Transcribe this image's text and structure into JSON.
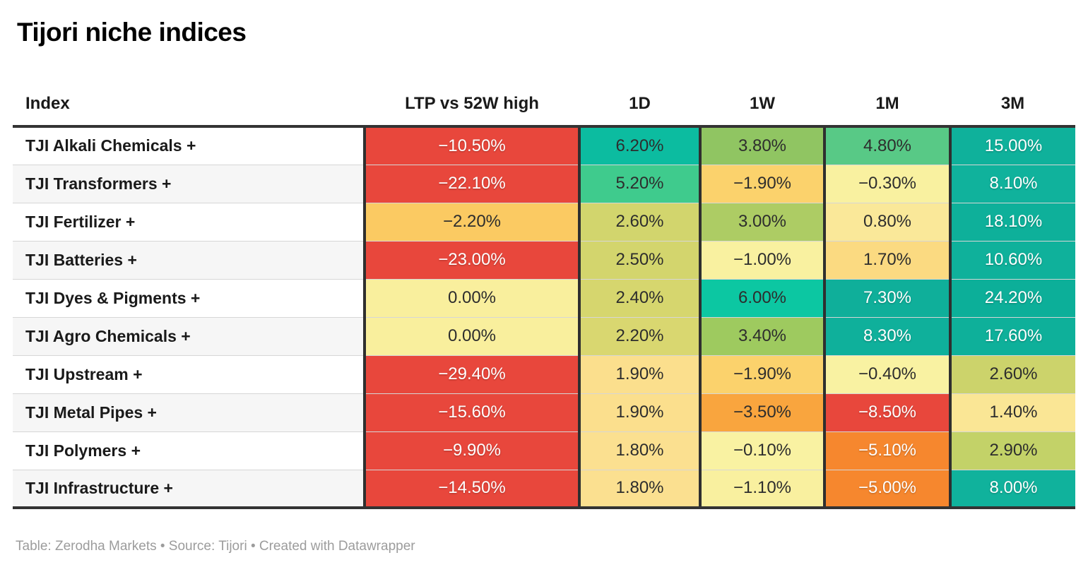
{
  "title": "Tijori niche indices",
  "footer": "Table: Zerodha Markets • Source: Tijori • Created with Datawrapper",
  "colors": {
    "negative_strong": "#e8473c",
    "negative_orange": "#f6872e",
    "neutral_yellow": "#f9ef9d",
    "positive_teal": "#0fb19b",
    "border_dark": "#333333",
    "row_stripe": "#f6f6f6",
    "footer_text": "#9c9c9c"
  },
  "table": {
    "columns": [
      "Index",
      "LTP vs 52W high",
      "1D",
      "1W",
      "1M",
      "3M"
    ],
    "rows": [
      {
        "index": "TJI Alkali Chemicals +",
        "cells": [
          {
            "text": "−10.50%",
            "bg": "#e8473c",
            "fg": "#ffffff"
          },
          {
            "text": "6.20%",
            "bg": "#0cbca0",
            "fg": "#2d2d2d"
          },
          {
            "text": "3.80%",
            "bg": "#90c562",
            "fg": "#2d2d2d"
          },
          {
            "text": "4.80%",
            "bg": "#58c986",
            "fg": "#2d2d2d"
          },
          {
            "text": "15.00%",
            "bg": "#0fb19b",
            "fg": "#ffffff"
          }
        ]
      },
      {
        "index": "TJI Transformers +",
        "cells": [
          {
            "text": "−22.10%",
            "bg": "#e8473c",
            "fg": "#ffffff"
          },
          {
            "text": "5.20%",
            "bg": "#3fcb8d",
            "fg": "#2d2d2d"
          },
          {
            "text": "−1.90%",
            "bg": "#fbd26c",
            "fg": "#2d2d2d"
          },
          {
            "text": "−0.30%",
            "bg": "#f9f1a0",
            "fg": "#2d2d2d"
          },
          {
            "text": "8.10%",
            "bg": "#10b29c",
            "fg": "#ffffff"
          }
        ]
      },
      {
        "index": "TJI Fertilizer +",
        "cells": [
          {
            "text": "−2.20%",
            "bg": "#fbca62",
            "fg": "#2d2d2d"
          },
          {
            "text": "2.60%",
            "bg": "#d2d56d",
            "fg": "#2d2d2d"
          },
          {
            "text": "3.00%",
            "bg": "#adcc64",
            "fg": "#2d2d2d"
          },
          {
            "text": "0.80%",
            "bg": "#fae899",
            "fg": "#2d2d2d"
          },
          {
            "text": "18.10%",
            "bg": "#0eb09a",
            "fg": "#ffffff"
          }
        ]
      },
      {
        "index": "TJI Batteries +",
        "cells": [
          {
            "text": "−23.00%",
            "bg": "#e8473c",
            "fg": "#ffffff"
          },
          {
            "text": "2.50%",
            "bg": "#d3d56d",
            "fg": "#2d2d2d"
          },
          {
            "text": "−1.00%",
            "bg": "#f9f1a0",
            "fg": "#2d2d2d"
          },
          {
            "text": "1.70%",
            "bg": "#fbda81",
            "fg": "#2d2d2d"
          },
          {
            "text": "10.60%",
            "bg": "#0fb19b",
            "fg": "#ffffff"
          }
        ]
      },
      {
        "index": "TJI Dyes & Pigments +",
        "cells": [
          {
            "text": "0.00%",
            "bg": "#f9ef9d",
            "fg": "#2d2d2d"
          },
          {
            "text": "2.40%",
            "bg": "#d6d66e",
            "fg": "#2d2d2d"
          },
          {
            "text": "6.00%",
            "bg": "#0cc7a2",
            "fg": "#2d2d2d"
          },
          {
            "text": "7.30%",
            "bg": "#0faf9a",
            "fg": "#ffffff"
          },
          {
            "text": "24.20%",
            "bg": "#0caf99",
            "fg": "#ffffff"
          }
        ]
      },
      {
        "index": "TJI Agro Chemicals +",
        "cells": [
          {
            "text": "0.00%",
            "bg": "#f9ef9d",
            "fg": "#2d2d2d"
          },
          {
            "text": "2.20%",
            "bg": "#d9d770",
            "fg": "#2d2d2d"
          },
          {
            "text": "3.40%",
            "bg": "#9eca5f",
            "fg": "#2d2d2d"
          },
          {
            "text": "8.30%",
            "bg": "#0fb09b",
            "fg": "#ffffff"
          },
          {
            "text": "17.60%",
            "bg": "#0eb09a",
            "fg": "#ffffff"
          }
        ]
      },
      {
        "index": "TJI Upstream +",
        "cells": [
          {
            "text": "−29.40%",
            "bg": "#e8473c",
            "fg": "#ffffff"
          },
          {
            "text": "1.90%",
            "bg": "#fbdf8d",
            "fg": "#2d2d2d"
          },
          {
            "text": "−1.90%",
            "bg": "#fbd26c",
            "fg": "#2d2d2d"
          },
          {
            "text": "−0.40%",
            "bg": "#f9f2a2",
            "fg": "#2d2d2d"
          },
          {
            "text": "2.60%",
            "bg": "#ccd36b",
            "fg": "#2d2d2d"
          }
        ]
      },
      {
        "index": "TJI Metal Pipes +",
        "cells": [
          {
            "text": "−15.60%",
            "bg": "#e8473c",
            "fg": "#ffffff"
          },
          {
            "text": "1.90%",
            "bg": "#fbdf8d",
            "fg": "#2d2d2d"
          },
          {
            "text": "−3.50%",
            "bg": "#f9a53e",
            "fg": "#2d2d2d"
          },
          {
            "text": "−8.50%",
            "bg": "#e8473c",
            "fg": "#ffffff"
          },
          {
            "text": "1.40%",
            "bg": "#fae695",
            "fg": "#2d2d2d"
          }
        ]
      },
      {
        "index": "TJI Polymers +",
        "cells": [
          {
            "text": "−9.90%",
            "bg": "#e8473c",
            "fg": "#ffffff"
          },
          {
            "text": "1.80%",
            "bg": "#fbe090",
            "fg": "#2d2d2d"
          },
          {
            "text": "−0.10%",
            "bg": "#f9f2a2",
            "fg": "#2d2d2d"
          },
          {
            "text": "−5.10%",
            "bg": "#f6872e",
            "fg": "#ffffff"
          },
          {
            "text": "2.90%",
            "bg": "#c3d268",
            "fg": "#2d2d2d"
          }
        ]
      },
      {
        "index": "TJI Infrastructure +",
        "cells": [
          {
            "text": "−14.50%",
            "bg": "#e8473c",
            "fg": "#ffffff"
          },
          {
            "text": "1.80%",
            "bg": "#fbe090",
            "fg": "#2d2d2d"
          },
          {
            "text": "−1.10%",
            "bg": "#f9f09f",
            "fg": "#2d2d2d"
          },
          {
            "text": "−5.00%",
            "bg": "#f6872e",
            "fg": "#ffffff"
          },
          {
            "text": "8.00%",
            "bg": "#10b29c",
            "fg": "#ffffff"
          }
        ]
      }
    ]
  },
  "chart_data": {
    "type": "table",
    "title": "Tijori niche indices",
    "columns": [
      "Index",
      "LTP vs 52W high",
      "1D",
      "1W",
      "1M",
      "3M"
    ],
    "units": "percent",
    "colorscale": "heatmap red (negative) → yellow (0) → teal-green (positive)",
    "rows": [
      [
        "TJI Alkali Chemicals +",
        -10.5,
        6.2,
        3.8,
        4.8,
        15.0
      ],
      [
        "TJI Transformers +",
        -22.1,
        5.2,
        -1.9,
        -0.3,
        8.1
      ],
      [
        "TJI Fertilizer +",
        -2.2,
        2.6,
        3.0,
        0.8,
        18.1
      ],
      [
        "TJI Batteries +",
        -23.0,
        2.5,
        -1.0,
        1.7,
        10.6
      ],
      [
        "TJI Dyes & Pigments +",
        0.0,
        2.4,
        6.0,
        7.3,
        24.2
      ],
      [
        "TJI Agro Chemicals +",
        0.0,
        2.2,
        3.4,
        8.3,
        17.6
      ],
      [
        "TJI Upstream +",
        -29.4,
        1.9,
        -1.9,
        -0.4,
        2.6
      ],
      [
        "TJI Metal Pipes +",
        -15.6,
        1.9,
        -3.5,
        -8.5,
        1.4
      ],
      [
        "TJI Polymers +",
        -9.9,
        1.8,
        -0.1,
        -5.1,
        2.9
      ],
      [
        "TJI Infrastructure +",
        -14.5,
        1.8,
        -1.1,
        -5.0,
        8.0
      ]
    ]
  }
}
